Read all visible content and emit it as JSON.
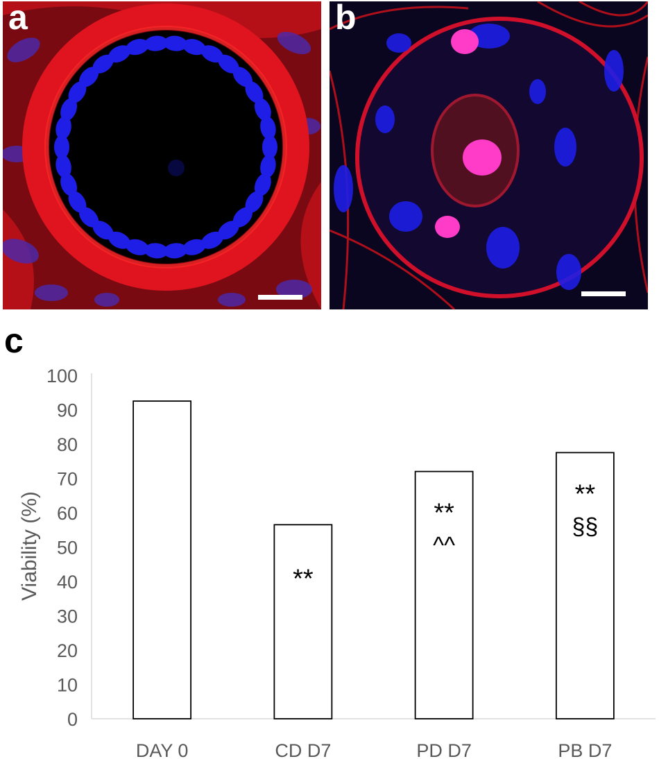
{
  "panels": [
    {
      "label": "a",
      "description_icon": "ovarian-follicle-fluorescence-image"
    },
    {
      "label": "b",
      "description_icon": "follicle-oocyte-fluorescence-image"
    }
  ],
  "colors": {
    "stain_red": "#e0141e",
    "stain_blue": "#1e1ee6",
    "stain_magenta": "#ff3cc8",
    "scale_bar": "#ffffff",
    "bar_fill": "#ffffff",
    "bar_stroke": "#000000",
    "axis_text": "#595959"
  },
  "chart_label": "c",
  "chart_data": {
    "type": "bar",
    "categories": [
      "DAY 0",
      "CD D7",
      "PD D7",
      "PB D7"
    ],
    "values": [
      92.5,
      56.5,
      72,
      77.5
    ],
    "annotations": [
      [],
      [
        "**"
      ],
      [
        "**",
        "^^"
      ],
      [
        "**",
        "§§"
      ]
    ],
    "ylabel": "Viability (%)",
    "xlabel": "",
    "ylim": [
      0,
      100
    ],
    "yticks": [
      0,
      10,
      20,
      30,
      40,
      50,
      60,
      70,
      80,
      90,
      100
    ],
    "grid": false,
    "legend": "none"
  }
}
